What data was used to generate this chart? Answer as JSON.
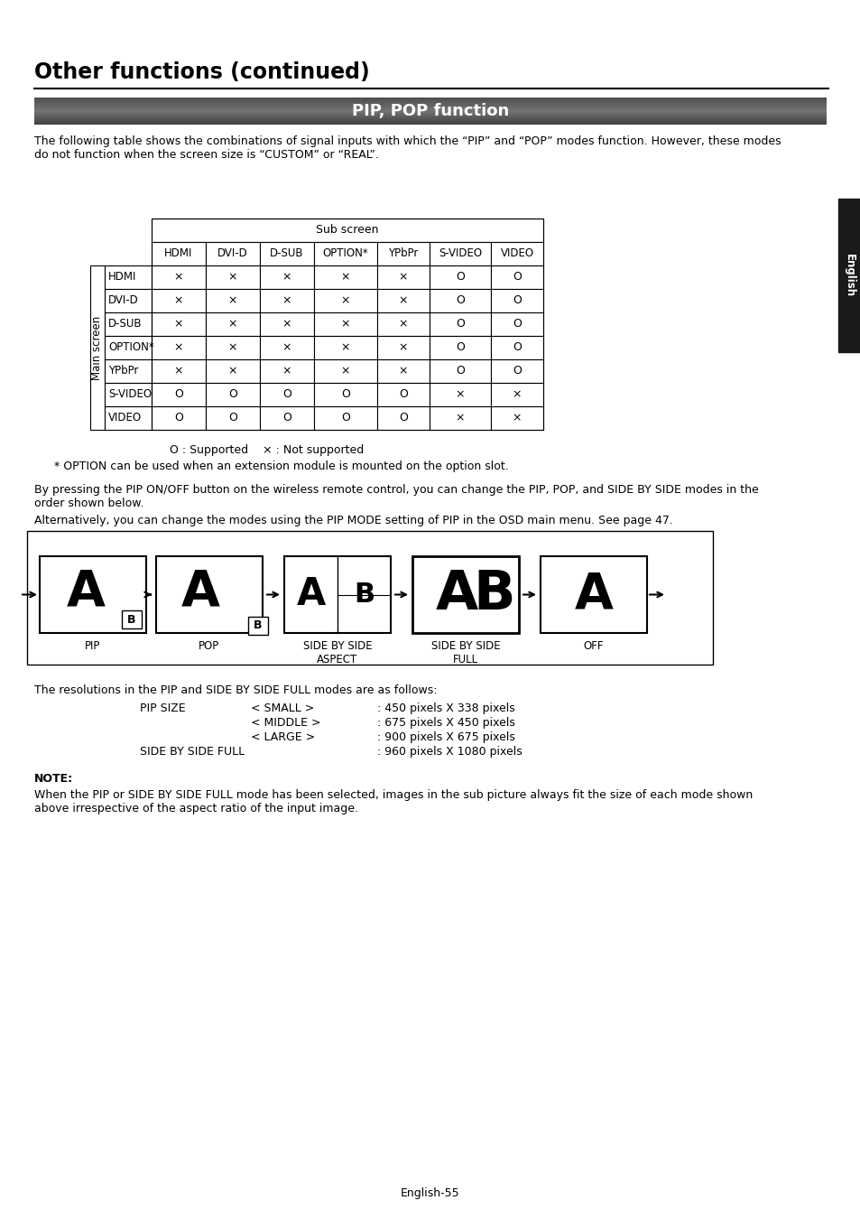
{
  "title": "Other functions (continued)",
  "section_title": "PIP, POP function",
  "intro_text": "The following table shows the combinations of signal inputs with which the “PIP” and “POP” modes function. However, these modes\ndo not function when the screen size is “CUSTOM” or “REAL”.",
  "table_col_headers": [
    "HDMI",
    "DVI-D",
    "D-SUB",
    "OPTION*",
    "YPbPr",
    "S-VIDEO",
    "VIDEO"
  ],
  "table_row_headers": [
    "HDMI",
    "DVI-D",
    "D-SUB",
    "OPTION*",
    "YPbPr",
    "S-VIDEO",
    "VIDEO"
  ],
  "table_data": [
    [
      "×",
      "×",
      "×",
      "×",
      "×",
      "O",
      "O"
    ],
    [
      "×",
      "×",
      "×",
      "×",
      "×",
      "O",
      "O"
    ],
    [
      "×",
      "×",
      "×",
      "×",
      "×",
      "O",
      "O"
    ],
    [
      "×",
      "×",
      "×",
      "×",
      "×",
      "O",
      "O"
    ],
    [
      "×",
      "×",
      "×",
      "×",
      "×",
      "O",
      "O"
    ],
    [
      "O",
      "O",
      "O",
      "O",
      "O",
      "×",
      "×"
    ],
    [
      "O",
      "O",
      "O",
      "O",
      "O",
      "×",
      "×"
    ]
  ],
  "legend_text": "O : Supported    × : Not supported",
  "option_note": "* OPTION can be used when an extension module is mounted on the option slot.",
  "body_text1": "By pressing the PIP ON/OFF button on the wireless remote control, you can change the PIP, POP, and SIDE BY SIDE modes in the\norder shown below.",
  "body_text2": "Alternatively, you can change the modes using the PIP MODE setting of PIP in the OSD main menu. See page 47.",
  "mode_labels": [
    "PIP",
    "POP",
    "SIDE BY SIDE\nASPECT",
    "SIDE BY SIDE\nFULL",
    "OFF"
  ],
  "resolution_header": "The resolutions in the PIP and SIDE BY SIDE FULL modes are as follows:",
  "pip_size_label": "PIP SIZE",
  "pip_sizes": [
    "< SMALL >",
    "< MIDDLE >",
    "< LARGE >"
  ],
  "pip_size_values": [
    ": 450 pixels X 338 pixels",
    ": 675 pixels X 450 pixels",
    ": 900 pixels X 675 pixels"
  ],
  "side_by_side_label": "SIDE BY SIDE FULL",
  "side_by_side_value": ": 960 pixels X 1080 pixels",
  "note_label": "NOTE:",
  "note_text": "When the PIP or SIDE BY SIDE FULL mode has been selected, images in the sub picture always fit the size of each mode shown\nabove irrespective of the aspect ratio of the input image.",
  "page_number": "English-55",
  "english_tab_color": "#1a1a1a",
  "bg_color": "#ffffff"
}
